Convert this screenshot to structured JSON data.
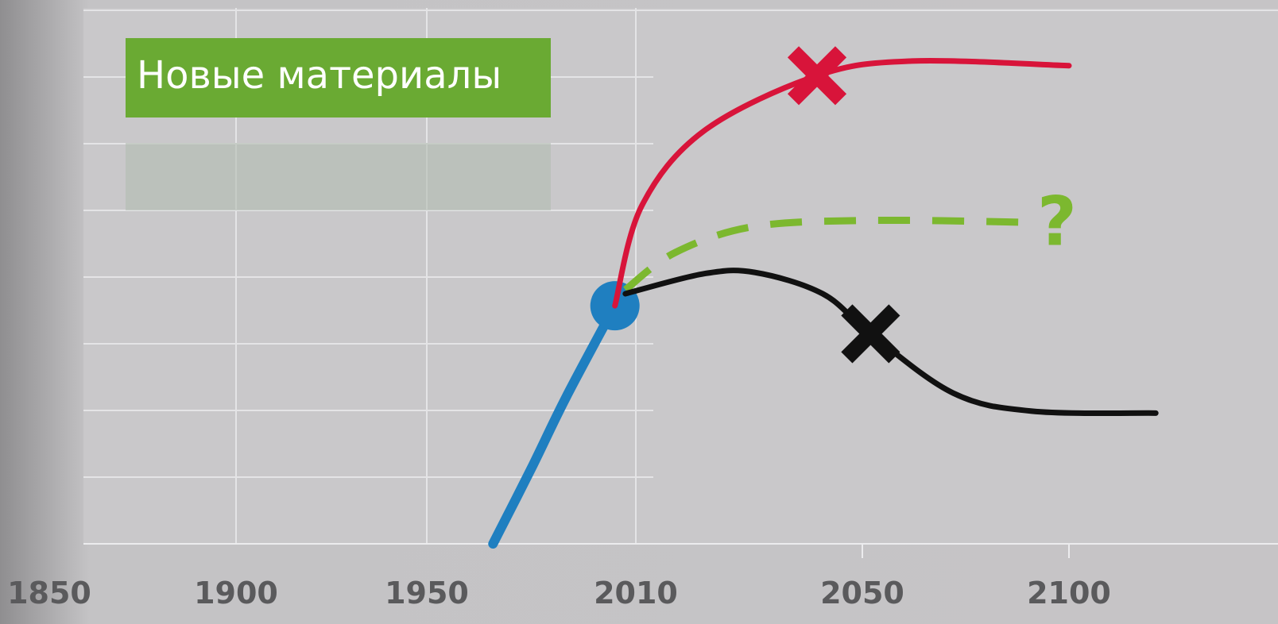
{
  "chart_data": {
    "type": "line",
    "title": "Новые материалы",
    "annotation": "?",
    "xticks": [
      1850,
      1900,
      1950,
      2010,
      2050,
      2100
    ],
    "ylim": [
      0,
      8
    ],
    "yticks": [
      0,
      1,
      2,
      3,
      4,
      5,
      6,
      7,
      8
    ],
    "grid": true,
    "series": [
      {
        "color": "#1f7fc0",
        "dashed": false,
        "x": [
          1969,
          1980,
          1990,
          2004
        ],
        "values": [
          0,
          1.13,
          2.2,
          3.57
        ],
        "dot": {
          "x": 2004,
          "y": 3.57
        }
      },
      {
        "color": "#d8143a",
        "dashed": false,
        "x": [
          2004,
          2011,
          2022,
          2042,
          2062,
          2100
        ],
        "values": [
          3.57,
          5.06,
          6.19,
          7.02,
          7.24,
          7.17
        ],
        "cross": {
          "x": 2042,
          "y": 7.02
        }
      },
      {
        "color": "#7cb82f",
        "dashed": true,
        "x": [
          2007,
          2017,
          2031,
          2053,
          2091
        ],
        "values": [
          3.81,
          4.37,
          4.76,
          4.85,
          4.82
        ]
      },
      {
        "color": "#111111",
        "dashed": false,
        "x": [
          2007,
          2022,
          2031,
          2043,
          2052,
          2072,
          2091,
          2121
        ],
        "values": [
          3.75,
          4.05,
          4.07,
          3.75,
          3.15,
          2.26,
          1.99,
          1.96
        ],
        "cross": {
          "x": 2052,
          "y": 3.15
        }
      }
    ]
  }
}
